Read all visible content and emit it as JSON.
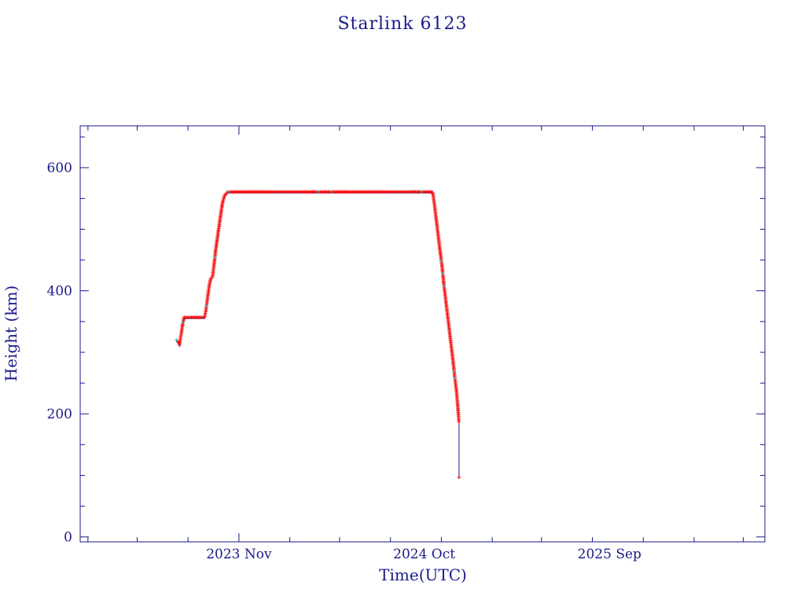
{
  "chart_data": {
    "type": "line",
    "title": "Starlink 6123",
    "xlabel": "Time(UTC)",
    "ylabel": "Height (km)",
    "xlim": [
      "2023-01-18",
      "2026-06-09"
    ],
    "ylim": [
      -8,
      668
    ],
    "x_ticks": [
      {
        "date": "2023-11-01",
        "label": "2023 Nov"
      },
      {
        "date": "2024-10-01",
        "label": "2024 Oct"
      },
      {
        "date": "2025-09-01",
        "label": "2025 Sep"
      }
    ],
    "y_ticks": [
      0,
      200,
      400,
      600
    ],
    "grid": false,
    "colors": {
      "axes": "#1a1a8c",
      "line": "#1a1a8c",
      "marker": "#ff0000",
      "marker_alt": "#00c8c8"
    },
    "series": [
      {
        "points": [
          {
            "x": "2023-07-11",
            "y": 318
          },
          {
            "x": "2023-07-14",
            "y": 315
          },
          {
            "x": "2023-07-17",
            "y": 310
          },
          {
            "x": "2023-07-18",
            "y": 320
          },
          {
            "x": "2023-07-20",
            "y": 330
          },
          {
            "x": "2023-07-22",
            "y": 343
          },
          {
            "x": "2023-07-25",
            "y": 355
          },
          {
            "x": "2023-08-05",
            "y": 355
          },
          {
            "x": "2023-08-20",
            "y": 355
          },
          {
            "x": "2023-08-31",
            "y": 355
          },
          {
            "x": "2023-09-02",
            "y": 365
          },
          {
            "x": "2023-09-05",
            "y": 385
          },
          {
            "x": "2023-09-08",
            "y": 405
          },
          {
            "x": "2023-09-11",
            "y": 418
          },
          {
            "x": "2023-09-14",
            "y": 420
          },
          {
            "x": "2023-09-17",
            "y": 440
          },
          {
            "x": "2023-09-20",
            "y": 465
          },
          {
            "x": "2023-09-24",
            "y": 490
          },
          {
            "x": "2023-09-28",
            "y": 515
          },
          {
            "x": "2023-10-02",
            "y": 540
          },
          {
            "x": "2023-10-06",
            "y": 553
          },
          {
            "x": "2023-10-12",
            "y": 559
          },
          {
            "x": "2023-11-15",
            "y": 559
          },
          {
            "x": "2023-12-20",
            "y": 559
          },
          {
            "x": "2024-01-25",
            "y": 559
          },
          {
            "x": "2024-03-01",
            "y": 559
          },
          {
            "x": "2024-04-10",
            "y": 559
          },
          {
            "x": "2024-05-15",
            "y": 559
          },
          {
            "x": "2024-06-20",
            "y": 559
          },
          {
            "x": "2024-07-25",
            "y": 559
          },
          {
            "x": "2024-08-30",
            "y": 559
          },
          {
            "x": "2024-10-15",
            "y": 559
          },
          {
            "x": "2024-10-17",
            "y": 555
          },
          {
            "x": "2024-10-20",
            "y": 535
          },
          {
            "x": "2024-10-24",
            "y": 505
          },
          {
            "x": "2024-10-28",
            "y": 475
          },
          {
            "x": "2024-11-02",
            "y": 440
          },
          {
            "x": "2024-11-06",
            "y": 405
          },
          {
            "x": "2024-11-10",
            "y": 375
          },
          {
            "x": "2024-11-14",
            "y": 345
          },
          {
            "x": "2024-11-18",
            "y": 315
          },
          {
            "x": "2024-11-22",
            "y": 285
          },
          {
            "x": "2024-11-25",
            "y": 260
          },
          {
            "x": "2024-11-28",
            "y": 238
          },
          {
            "x": "2024-11-30",
            "y": 218
          },
          {
            "x": "2024-12-02",
            "y": 195
          },
          {
            "x": "2024-12-03",
            "y": 183
          },
          {
            "x": "2024-12-03",
            "y": 95
          }
        ]
      }
    ]
  }
}
